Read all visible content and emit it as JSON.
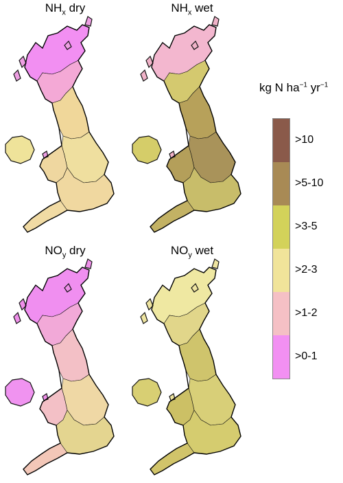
{
  "panels": [
    {
      "species": "NH",
      "sub": "x",
      "deposition": "dry",
      "fills": {
        "scotland_n": "#f28ff2",
        "scotland_s": "#f4a9d6",
        "north": "#f0d79a",
        "central": "#efdf9f",
        "south": "#f0d8a0",
        "wales": "#efd7a0",
        "sw": "#f1dba4",
        "ni": "#efe39a",
        "islands": "#ee9fe3"
      }
    },
    {
      "species": "NH",
      "sub": "x",
      "deposition": "wet",
      "fills": {
        "scotland_n": "#f3b7cf",
        "scotland_s": "#d4c96f",
        "north": "#b7a15a",
        "central": "#a9935a",
        "south": "#c8bd6a",
        "wales": "#b49f5a",
        "sw": "#c3b264",
        "ni": "#d5cd69",
        "islands": "#f0b2c8"
      }
    },
    {
      "species": "NO",
      "sub": "y",
      "deposition": "dry",
      "fills": {
        "scotland_n": "#f08ff0",
        "scotland_s": "#f2a9d8",
        "north": "#f3c0c6",
        "central": "#efd8a5",
        "south": "#e4d590",
        "wales": "#f3c0c6",
        "sw": "#f3c7b8",
        "ni": "#f093f0",
        "islands": "#ee8fe9"
      }
    },
    {
      "species": "NO",
      "sub": "y",
      "deposition": "wet",
      "fills": {
        "scotland_n": "#efe8a2",
        "scotland_s": "#e1d68a",
        "north": "#cfc46c",
        "central": "#d8cf78",
        "south": "#d5cc6f",
        "wales": "#ccc065",
        "sw": "#d1c46a",
        "ni": "#d8cf73",
        "islands": "#eee4a0"
      }
    }
  ],
  "legend": {
    "title": "kg N ha",
    "sup1": "−1",
    "mid": " yr",
    "sup2": "−1",
    "classes": [
      {
        "label": ">10",
        "color": "#8a5a4a"
      },
      {
        "label": ">5-10",
        "color": "#a88a55"
      },
      {
        "label": ">3-5",
        "color": "#d3d25a"
      },
      {
        "label": ">2-3",
        "color": "#f1e49a"
      },
      {
        "label": ">1-2",
        "color": "#f5c0c5"
      },
      {
        "label": ">0-1",
        "color": "#f290f2"
      }
    ]
  }
}
